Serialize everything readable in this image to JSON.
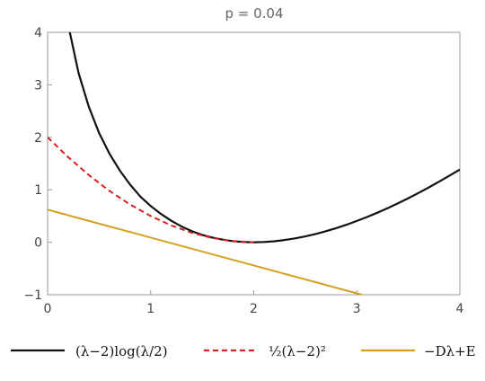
{
  "chart_data": {
    "type": "line",
    "title": "p = 0.04",
    "xlim": [
      0,
      4
    ],
    "ylim": [
      -1,
      4
    ],
    "x_ticks": [
      0,
      1,
      2,
      3,
      4
    ],
    "y_ticks": [
      -1,
      0,
      1,
      2,
      3,
      4
    ],
    "x_tick_labels": [
      "0",
      "1",
      "2",
      "3",
      "4"
    ],
    "y_tick_labels": [
      "−1",
      "0",
      "1",
      "2",
      "3",
      "4"
    ],
    "legend_position": "bottom",
    "series": [
      {
        "name": "(λ−2)log(λ/2)",
        "color": "#111111",
        "style": "solid",
        "points": [
          [
            0.2,
            4.14
          ],
          [
            0.3,
            3.23
          ],
          [
            0.4,
            2.58
          ],
          [
            0.5,
            2.08
          ],
          [
            0.6,
            1.69
          ],
          [
            0.7,
            1.37
          ],
          [
            0.8,
            1.1
          ],
          [
            0.9,
            0.87
          ],
          [
            1.0,
            0.69
          ],
          [
            1.1,
            0.54
          ],
          [
            1.2,
            0.41
          ],
          [
            1.3,
            0.3
          ],
          [
            1.4,
            0.21
          ],
          [
            1.5,
            0.14
          ],
          [
            1.6,
            0.089
          ],
          [
            1.7,
            0.049
          ],
          [
            1.8,
            0.021
          ],
          [
            1.9,
            0.005
          ],
          [
            2.0,
            0.0
          ],
          [
            2.1,
            0.005
          ],
          [
            2.2,
            0.019
          ],
          [
            2.3,
            0.042
          ],
          [
            2.4,
            0.073
          ],
          [
            2.5,
            0.112
          ],
          [
            2.6,
            0.157
          ],
          [
            2.7,
            0.21
          ],
          [
            2.8,
            0.269
          ],
          [
            2.9,
            0.334
          ],
          [
            3.0,
            0.405
          ],
          [
            3.1,
            0.482
          ],
          [
            3.2,
            0.564
          ],
          [
            3.3,
            0.651
          ],
          [
            3.4,
            0.743
          ],
          [
            3.5,
            0.839
          ],
          [
            3.6,
            0.94
          ],
          [
            3.7,
            1.046
          ],
          [
            3.8,
            1.156
          ],
          [
            3.9,
            1.27
          ],
          [
            4.0,
            1.386
          ]
        ]
      },
      {
        "name": "½(λ−2)²",
        "color": "#d62020",
        "style": "dashed",
        "points": [
          [
            0.0,
            2.0
          ],
          [
            0.2,
            1.62
          ],
          [
            0.4,
            1.28
          ],
          [
            0.6,
            0.98
          ],
          [
            0.8,
            0.72
          ],
          [
            1.0,
            0.5
          ],
          [
            1.2,
            0.32
          ],
          [
            1.4,
            0.18
          ],
          [
            1.6,
            0.08
          ],
          [
            1.8,
            0.02
          ],
          [
            2.0,
            0.0
          ]
        ]
      },
      {
        "name": "−Dλ+E",
        "color": "#d4a020",
        "style": "solid",
        "points": [
          [
            0.0,
            0.62
          ],
          [
            3.05,
            -1.0
          ]
        ]
      }
    ]
  }
}
